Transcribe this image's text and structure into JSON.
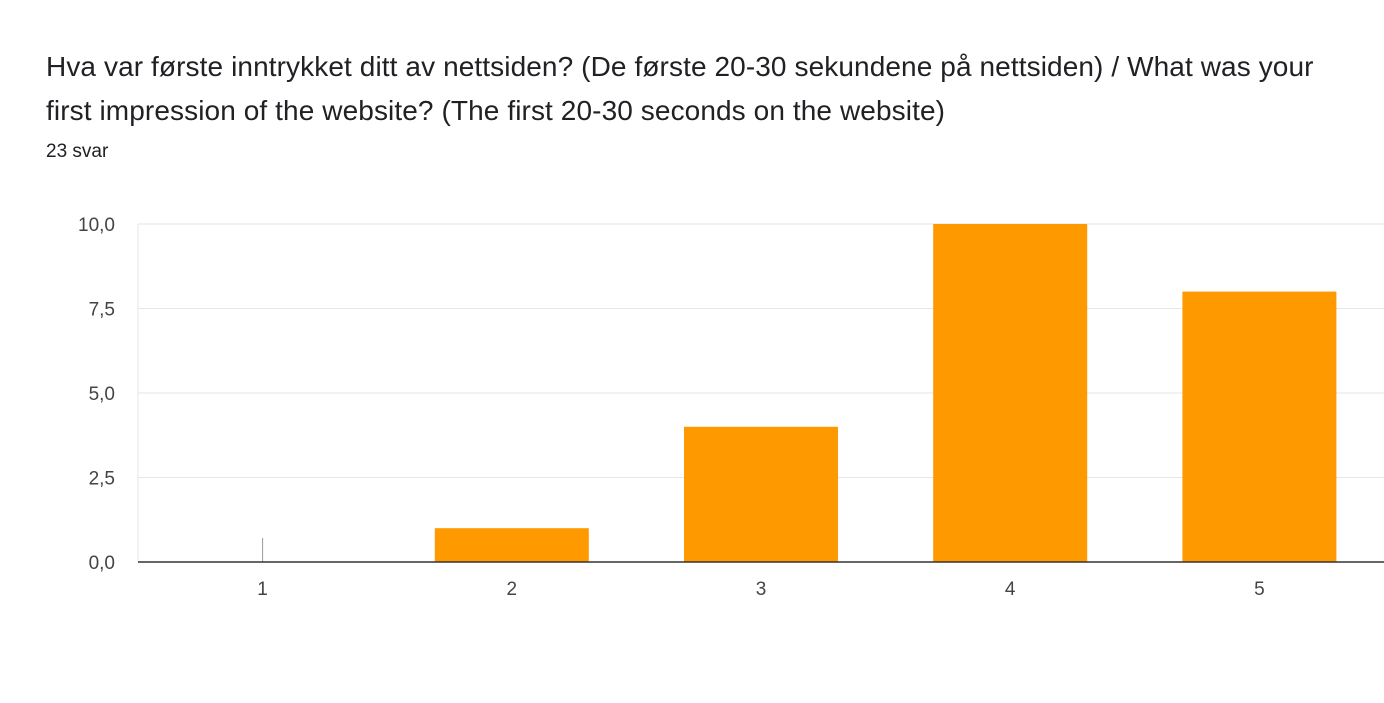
{
  "header": {
    "title": "Hva var første inntrykket ditt av nettsiden? (De første 20-30 sekundene på nettsiden) / What was your first impression of the website? (The first 20-30 seconds on the website)",
    "response_count": "23 svar"
  },
  "colors": {
    "bar": "#ff9900",
    "grid": "#e6e6e6",
    "axis": "#333333"
  },
  "chart_data": {
    "type": "bar",
    "categories": [
      "1",
      "2",
      "3",
      "4",
      "5"
    ],
    "values": [
      0,
      1,
      4,
      10,
      8
    ],
    "ylim": [
      0,
      10
    ],
    "yticks": [
      0,
      2.5,
      5,
      7.5,
      10
    ],
    "ytick_labels": [
      "0,0",
      "2,5",
      "5,0",
      "7,5",
      "10,0"
    ],
    "grid": true,
    "legend": "none",
    "xlabel": "",
    "ylabel": ""
  }
}
